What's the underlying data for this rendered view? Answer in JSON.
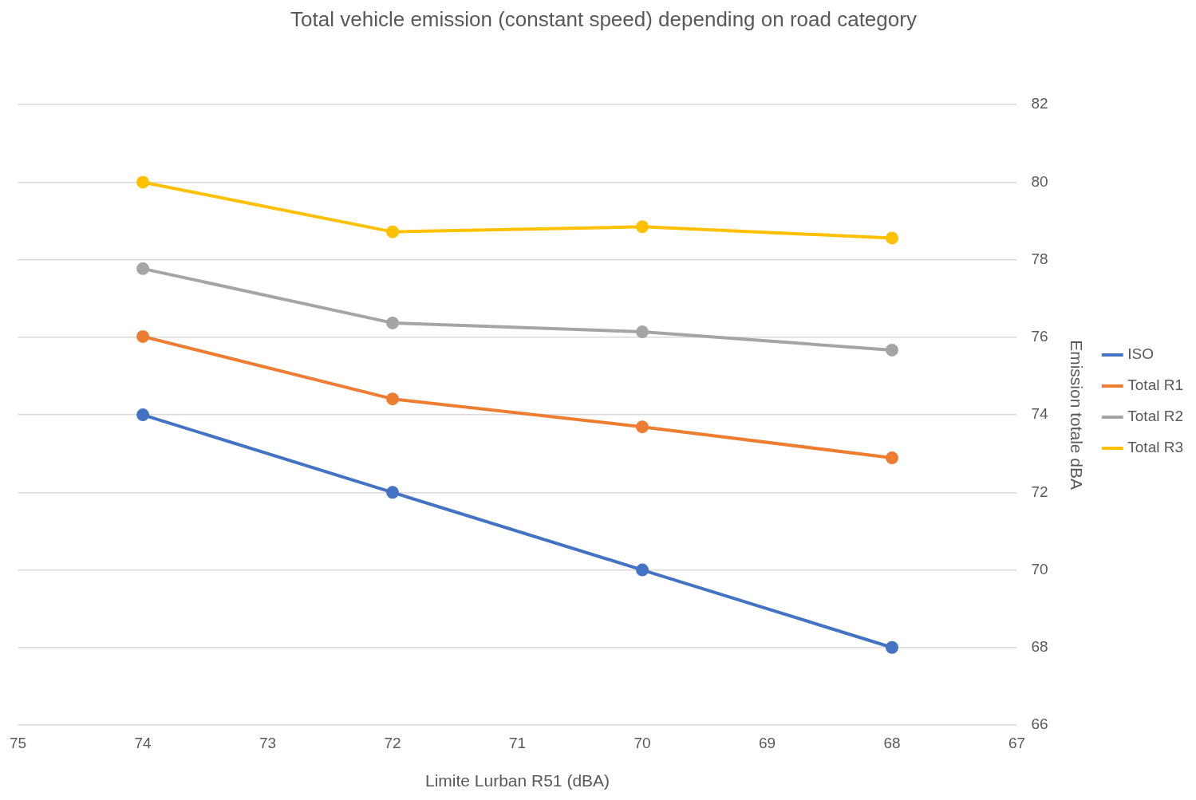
{
  "chart_data": {
    "type": "line",
    "title": "Total vehicle emission (constant speed) depending on road category",
    "xlabel": "Limite Lurban R51 (dBA)",
    "ylabel": "Emission totale dBA",
    "x": [
      74,
      72,
      70,
      68
    ],
    "series": [
      {
        "name": "ISO",
        "color": "#4472c4",
        "values": [
          74,
          72,
          70,
          68
        ]
      },
      {
        "name": "Total R1",
        "color": "#ed7d31",
        "values": [
          76.02,
          74.41,
          73.69,
          72.89
        ]
      },
      {
        "name": "Total R2",
        "color": "#a5a5a5",
        "values": [
          77.77,
          76.37,
          76.14,
          75.67
        ]
      },
      {
        "name": "Total R3",
        "color": "#ffc000",
        "values": [
          80,
          78.72,
          78.85,
          78.56
        ]
      }
    ],
    "xlim": [
      75,
      67
    ],
    "xticks": [
      75,
      74,
      73,
      72,
      71,
      70,
      69,
      68,
      67
    ],
    "ylim": [
      66,
      82
    ],
    "yticks": [
      66,
      68,
      70,
      72,
      74,
      76,
      78,
      80,
      82
    ],
    "grid": "y",
    "legend": "right",
    "marker": "circle",
    "line_style": "solid"
  }
}
